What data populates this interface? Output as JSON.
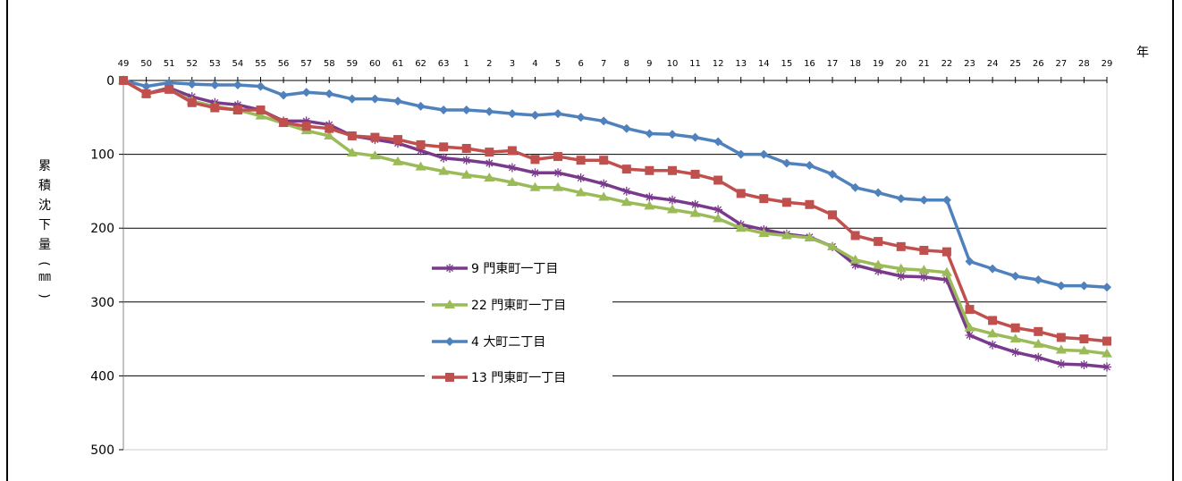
{
  "chart_data": {
    "type": "line",
    "xlabel_unit": "年",
    "ylabel": "累積沈下量(㎜)",
    "ylim": [
      0,
      500
    ],
    "yticks": [
      0,
      100,
      200,
      300,
      400,
      500
    ],
    "y_inverted": true,
    "grid": "horizontal",
    "legend_position": "center-left",
    "categories": [
      "49",
      "50",
      "51",
      "52",
      "53",
      "54",
      "55",
      "56",
      "57",
      "58",
      "59",
      "60",
      "61",
      "62",
      "63",
      "1",
      "2",
      "3",
      "4",
      "5",
      "6",
      "7",
      "8",
      "9",
      "10",
      "11",
      "12",
      "13",
      "14",
      "15",
      "16",
      "17",
      "18",
      "19",
      "20",
      "21",
      "22",
      "23",
      "24",
      "25",
      "26",
      "27",
      "28",
      "29"
    ],
    "series": [
      {
        "name": "9 門東町一丁目",
        "color": "#7a3a8c",
        "marker": "asterisk",
        "values": [
          0,
          18,
          10,
          22,
          30,
          33,
          40,
          55,
          55,
          60,
          75,
          80,
          85,
          95,
          105,
          108,
          112,
          118,
          125,
          125,
          132,
          140,
          150,
          158,
          162,
          168,
          175,
          195,
          202,
          208,
          212,
          225,
          250,
          258,
          265,
          266,
          270,
          345,
          358,
          368,
          375,
          384,
          385,
          388
        ]
      },
      {
        "name": "22 門東町一丁目",
        "color": "#9bbb59",
        "marker": "triangle",
        "values": [
          0,
          18,
          12,
          28,
          35,
          40,
          48,
          58,
          68,
          75,
          98,
          102,
          110,
          117,
          123,
          128,
          132,
          138,
          145,
          145,
          152,
          158,
          165,
          170,
          175,
          180,
          187,
          200,
          207,
          210,
          213,
          225,
          243,
          250,
          255,
          257,
          260,
          335,
          343,
          350,
          357,
          365,
          366,
          370
        ]
      },
      {
        "name": "4 大町二丁目",
        "color": "#4f81bd",
        "marker": "diamond",
        "values": [
          0,
          8,
          3,
          5,
          6,
          6,
          8,
          20,
          16,
          18,
          25,
          25,
          28,
          35,
          40,
          40,
          42,
          45,
          47,
          45,
          50,
          55,
          65,
          72,
          73,
          77,
          83,
          100,
          100,
          112,
          115,
          127,
          145,
          152,
          160,
          162,
          162,
          245,
          255,
          265,
          270,
          278,
          278,
          280
        ]
      },
      {
        "name": "13 門東町一丁目",
        "color": "#c0504d",
        "marker": "square",
        "values": [
          0,
          18,
          12,
          30,
          37,
          40,
          40,
          57,
          62,
          65,
          75,
          77,
          80,
          87,
          90,
          92,
          97,
          95,
          107,
          103,
          108,
          108,
          120,
          122,
          122,
          127,
          135,
          153,
          160,
          165,
          168,
          182,
          210,
          218,
          225,
          230,
          232,
          310,
          325,
          335,
          340,
          348,
          350,
          353
        ]
      }
    ]
  }
}
